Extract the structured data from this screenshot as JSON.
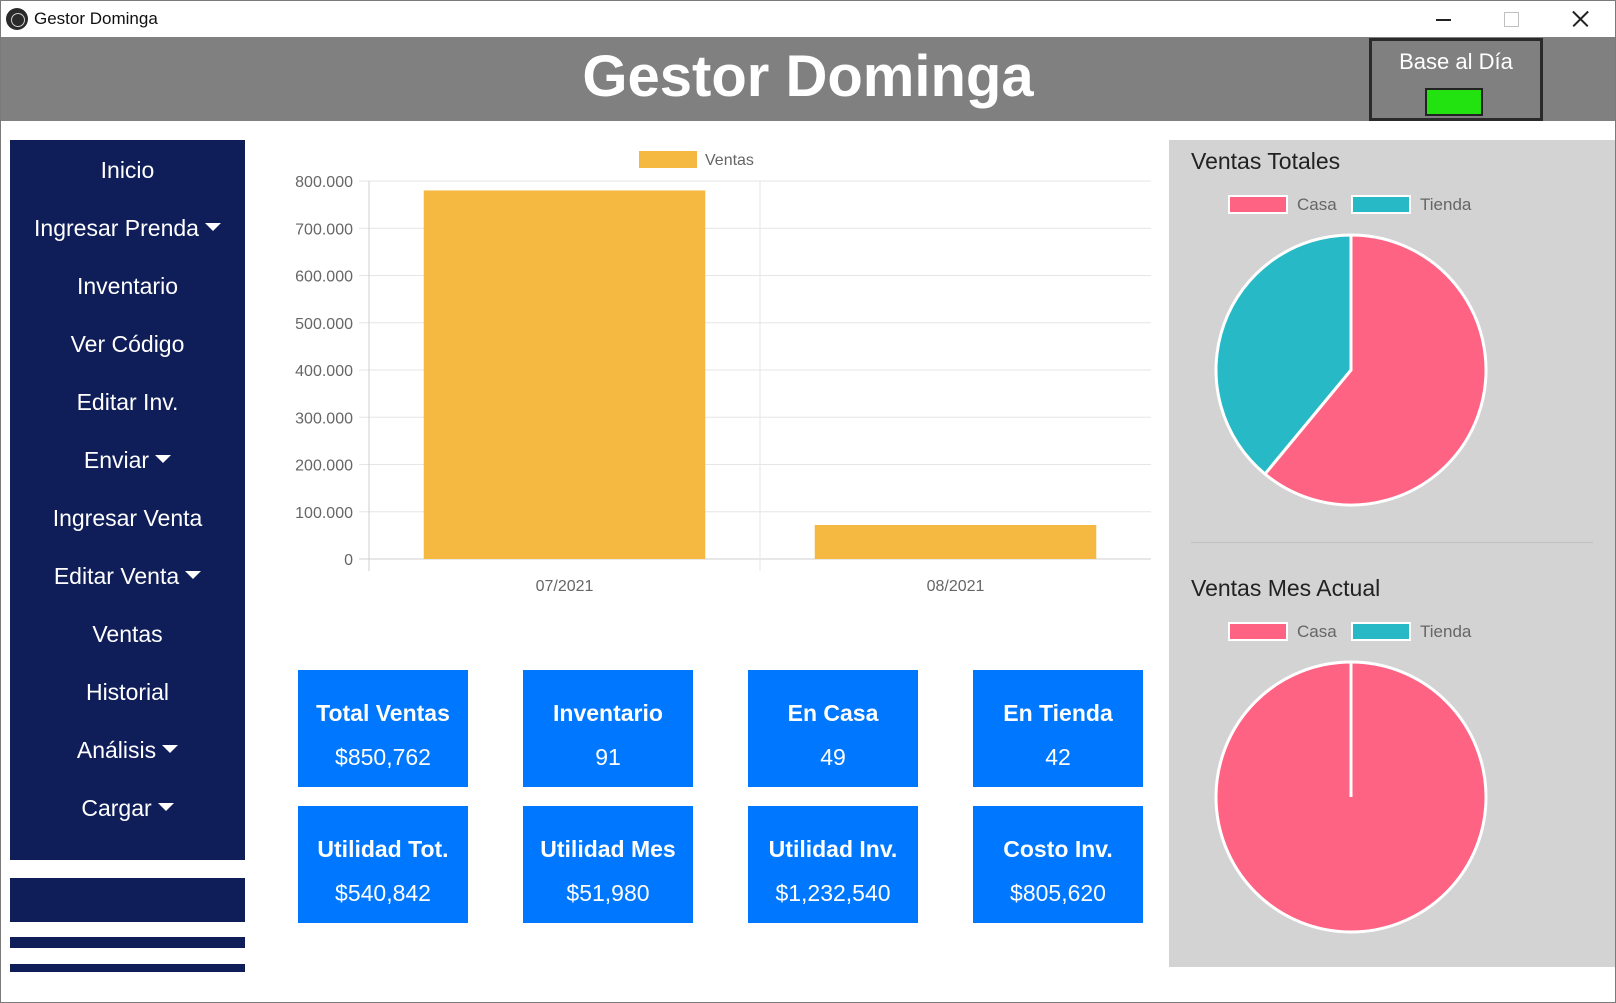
{
  "window": {
    "title": "Gestor Dominga"
  },
  "header": {
    "title": "Gestor Dominga",
    "status_label": "Base al Día",
    "status_color": "#22e30f"
  },
  "sidebar": {
    "items": [
      {
        "label": "Inicio",
        "dropdown": false
      },
      {
        "label": "Ingresar Prenda",
        "dropdown": true
      },
      {
        "label": "Inventario",
        "dropdown": false
      },
      {
        "label": "Ver Código",
        "dropdown": false
      },
      {
        "label": "Editar Inv.",
        "dropdown": false
      },
      {
        "label": "Enviar",
        "dropdown": true
      },
      {
        "label": "Ingresar Venta",
        "dropdown": false
      },
      {
        "label": "Editar Venta",
        "dropdown": true
      },
      {
        "label": "Ventas",
        "dropdown": false
      },
      {
        "label": "Historial",
        "dropdown": false
      },
      {
        "label": "Análisis",
        "dropdown": true
      },
      {
        "label": "Cargar",
        "dropdown": true
      }
    ]
  },
  "cards": [
    {
      "title": "Total Ventas",
      "value": "$850,762"
    },
    {
      "title": "Inventario",
      "value": "91"
    },
    {
      "title": "En Casa",
      "value": "49"
    },
    {
      "title": "En Tienda",
      "value": "42"
    },
    {
      "title": "Utilidad Tot.",
      "value": "$540,842"
    },
    {
      "title": "Utilidad Mes",
      "value": "$51,980"
    },
    {
      "title": "Utilidad Inv.",
      "value": "$1,232,540"
    },
    {
      "title": "Costo Inv.",
      "value": "$805,620"
    }
  ],
  "colors": {
    "sidebar_bg": "#0f1d59",
    "card_bg": "#0077ff",
    "header_bg": "#808080",
    "bar": "#f5b942",
    "casa": "#ff6384",
    "tienda": "#27b9c6"
  },
  "chart_data": [
    {
      "type": "bar",
      "categories": [
        "07/2021",
        "08/2021"
      ],
      "series": [
        {
          "name": "Ventas",
          "values": [
            780000,
            72000
          ]
        }
      ],
      "ylim": [
        0,
        800000
      ],
      "yticks": [
        "0",
        "100.000",
        "200.000",
        "300.000",
        "400.000",
        "500.000",
        "600.000",
        "700.000",
        "800.000"
      ],
      "legend": "top",
      "grid": true,
      "color": "#f5b942"
    },
    {
      "type": "pie",
      "title": "Ventas Totales",
      "labels": [
        "Casa",
        "Tienda"
      ],
      "values": [
        0.61,
        0.39
      ],
      "colors": [
        "#ff6384",
        "#27b9c6"
      ],
      "legend": "top"
    },
    {
      "type": "pie",
      "title": "Ventas Mes Actual",
      "labels": [
        "Casa",
        "Tienda"
      ],
      "values": [
        1.0,
        0.0
      ],
      "colors": [
        "#ff6384",
        "#27b9c6"
      ],
      "legend": "top"
    }
  ]
}
